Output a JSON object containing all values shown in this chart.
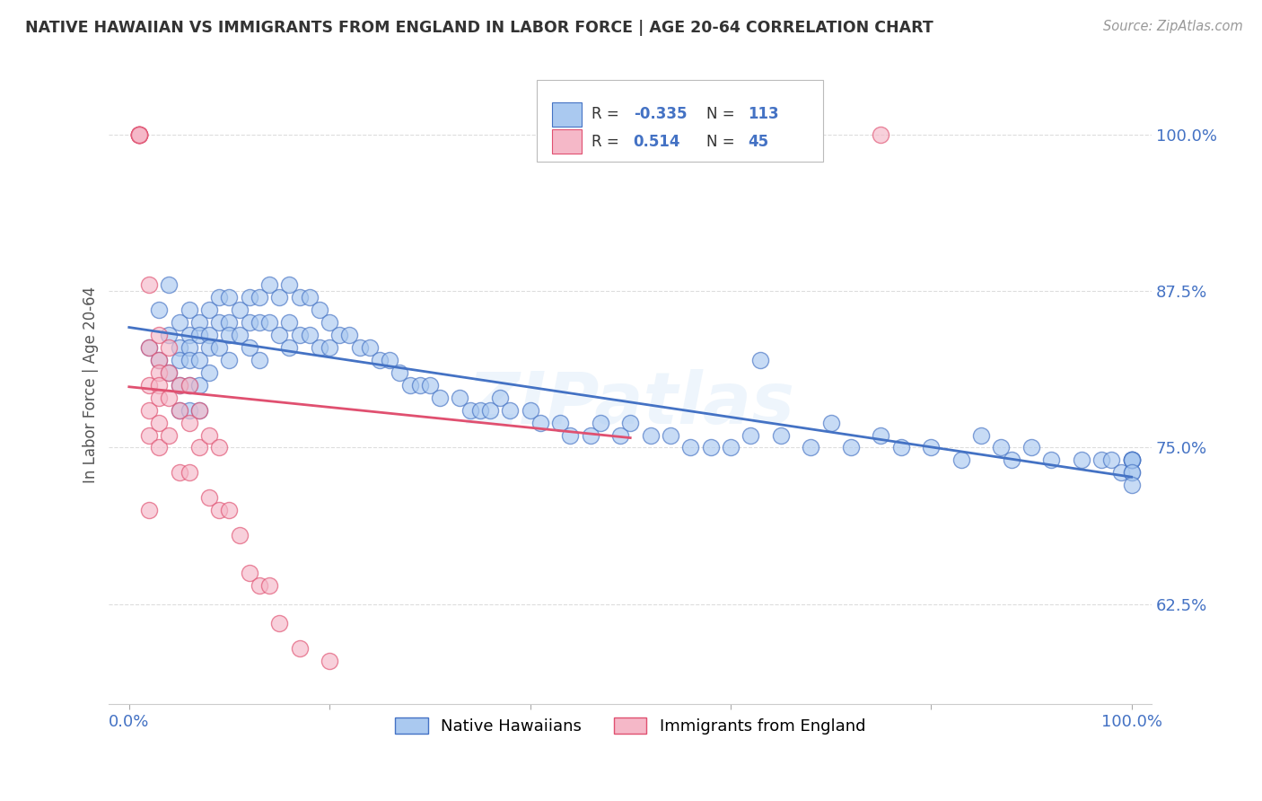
{
  "title": "NATIVE HAWAIIAN VS IMMIGRANTS FROM ENGLAND IN LABOR FORCE | AGE 20-64 CORRELATION CHART",
  "source": "Source: ZipAtlas.com",
  "ylabel": "In Labor Force | Age 20-64",
  "xlim": [
    -0.02,
    1.02
  ],
  "ylim": [
    0.545,
    1.055
  ],
  "yticks": [
    0.625,
    0.75,
    0.875,
    1.0
  ],
  "ytick_labels": [
    "62.5%",
    "75.0%",
    "87.5%",
    "100.0%"
  ],
  "xticks": [
    0.0,
    0.2,
    0.4,
    0.6,
    0.8,
    1.0
  ],
  "xtick_labels": [
    "0.0%",
    "",
    "",
    "",
    "",
    "100.0%"
  ],
  "blue_R": "-0.335",
  "blue_N": "113",
  "pink_R": "0.514",
  "pink_N": "45",
  "blue_color": "#aac9f0",
  "pink_color": "#f5b8c8",
  "blue_line_color": "#4472c4",
  "pink_line_color": "#e05070",
  "watermark": "ZIPatlas",
  "legend_label_blue": "Native Hawaiians",
  "legend_label_pink": "Immigrants from England",
  "blue_x": [
    0.02,
    0.03,
    0.03,
    0.04,
    0.04,
    0.04,
    0.05,
    0.05,
    0.05,
    0.05,
    0.05,
    0.06,
    0.06,
    0.06,
    0.06,
    0.06,
    0.06,
    0.07,
    0.07,
    0.07,
    0.07,
    0.07,
    0.08,
    0.08,
    0.08,
    0.08,
    0.09,
    0.09,
    0.09,
    0.1,
    0.1,
    0.1,
    0.1,
    0.11,
    0.11,
    0.12,
    0.12,
    0.12,
    0.13,
    0.13,
    0.13,
    0.14,
    0.14,
    0.15,
    0.15,
    0.16,
    0.16,
    0.16,
    0.17,
    0.17,
    0.18,
    0.18,
    0.19,
    0.19,
    0.2,
    0.2,
    0.21,
    0.22,
    0.23,
    0.24,
    0.25,
    0.26,
    0.27,
    0.28,
    0.29,
    0.3,
    0.31,
    0.33,
    0.34,
    0.35,
    0.36,
    0.37,
    0.38,
    0.4,
    0.41,
    0.43,
    0.44,
    0.46,
    0.47,
    0.49,
    0.5,
    0.52,
    0.54,
    0.56,
    0.58,
    0.6,
    0.62,
    0.63,
    0.65,
    0.68,
    0.7,
    0.72,
    0.75,
    0.77,
    0.8,
    0.83,
    0.85,
    0.87,
    0.88,
    0.9,
    0.92,
    0.95,
    0.97,
    0.98,
    0.99,
    1.0,
    1.0,
    1.0,
    1.0,
    1.0,
    1.0,
    1.0,
    1.0
  ],
  "blue_y": [
    0.83,
    0.82,
    0.86,
    0.84,
    0.88,
    0.81,
    0.83,
    0.85,
    0.82,
    0.8,
    0.78,
    0.84,
    0.83,
    0.86,
    0.82,
    0.8,
    0.78,
    0.85,
    0.84,
    0.82,
    0.8,
    0.78,
    0.86,
    0.84,
    0.83,
    0.81,
    0.87,
    0.85,
    0.83,
    0.87,
    0.85,
    0.84,
    0.82,
    0.86,
    0.84,
    0.87,
    0.85,
    0.83,
    0.87,
    0.85,
    0.82,
    0.88,
    0.85,
    0.87,
    0.84,
    0.88,
    0.85,
    0.83,
    0.87,
    0.84,
    0.87,
    0.84,
    0.86,
    0.83,
    0.85,
    0.83,
    0.84,
    0.84,
    0.83,
    0.83,
    0.82,
    0.82,
    0.81,
    0.8,
    0.8,
    0.8,
    0.79,
    0.79,
    0.78,
    0.78,
    0.78,
    0.79,
    0.78,
    0.78,
    0.77,
    0.77,
    0.76,
    0.76,
    0.77,
    0.76,
    0.77,
    0.76,
    0.76,
    0.75,
    0.75,
    0.75,
    0.76,
    0.82,
    0.76,
    0.75,
    0.77,
    0.75,
    0.76,
    0.75,
    0.75,
    0.74,
    0.76,
    0.75,
    0.74,
    0.75,
    0.74,
    0.74,
    0.74,
    0.74,
    0.73,
    0.74,
    0.74,
    0.73,
    0.74,
    0.74,
    0.74,
    0.73,
    0.72
  ],
  "pink_x": [
    0.01,
    0.01,
    0.01,
    0.01,
    0.01,
    0.01,
    0.01,
    0.02,
    0.02,
    0.02,
    0.02,
    0.02,
    0.02,
    0.03,
    0.03,
    0.03,
    0.03,
    0.03,
    0.03,
    0.03,
    0.04,
    0.04,
    0.04,
    0.04,
    0.05,
    0.05,
    0.05,
    0.06,
    0.06,
    0.06,
    0.07,
    0.07,
    0.08,
    0.08,
    0.09,
    0.09,
    0.1,
    0.11,
    0.12,
    0.13,
    0.14,
    0.15,
    0.17,
    0.2,
    0.75
  ],
  "pink_y": [
    1.0,
    1.0,
    1.0,
    1.0,
    1.0,
    1.0,
    1.0,
    0.88,
    0.83,
    0.8,
    0.78,
    0.76,
    0.7,
    0.84,
    0.82,
    0.81,
    0.8,
    0.79,
    0.77,
    0.75,
    0.83,
    0.81,
    0.79,
    0.76,
    0.8,
    0.78,
    0.73,
    0.8,
    0.77,
    0.73,
    0.78,
    0.75,
    0.76,
    0.71,
    0.75,
    0.7,
    0.7,
    0.68,
    0.65,
    0.64,
    0.64,
    0.61,
    0.59,
    0.58,
    1.0
  ]
}
